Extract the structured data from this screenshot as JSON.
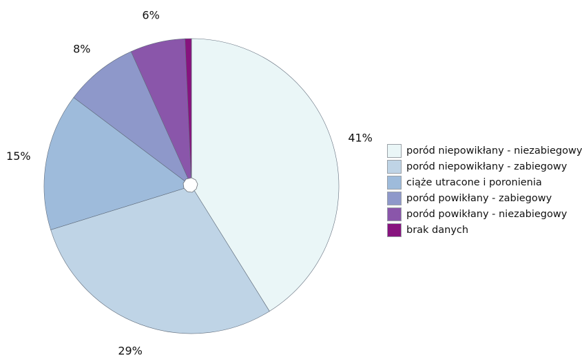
{
  "chart_data": {
    "type": "pie",
    "title": "",
    "legend_position": "right",
    "slices": [
      {
        "label": "poród niepowikłany - niezabiegowy",
        "value": 41,
        "display": "41%",
        "color": "#eaf6f7"
      },
      {
        "label": "poród niepowikłany - zabiegowy",
        "value": 29,
        "display": "29%",
        "color": "#bfd4e6"
      },
      {
        "label": "ciąże utracone i poronienia",
        "value": 15,
        "display": "15%",
        "color": "#9ebbdb"
      },
      {
        "label": "poród powikłany - zabiegowy",
        "value": 8,
        "display": "8%",
        "color": "#8e98ca"
      },
      {
        "label": "poród powikłany - niezabiegowy",
        "value": 6,
        "display": "6%",
        "color": "#8a56aa"
      },
      {
        "label": "brak danych",
        "value": 0.7,
        "display": "",
        "color": "#87137e"
      }
    ]
  }
}
